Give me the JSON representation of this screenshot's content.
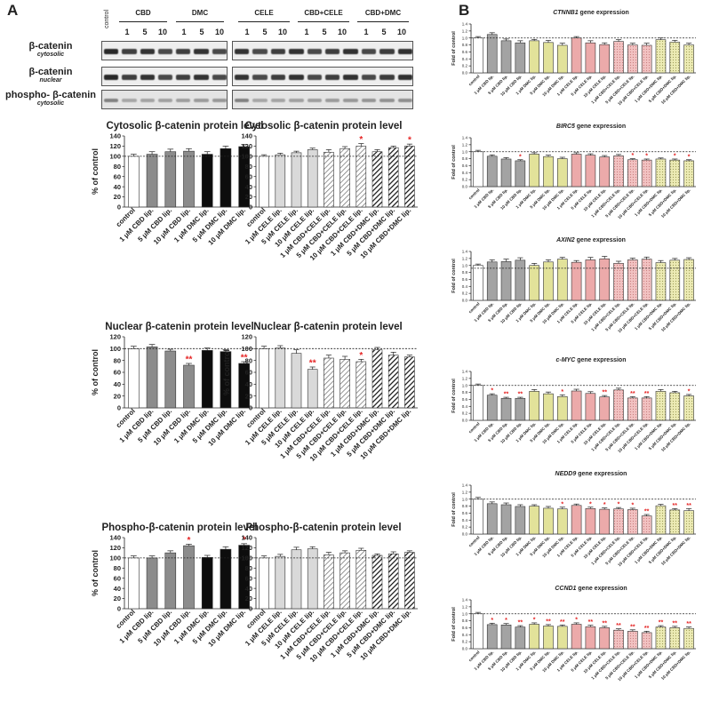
{
  "panels": {
    "a": "A",
    "b": "B"
  },
  "blot": {
    "left_groups": [
      {
        "label": "control",
        "rotated": true
      },
      {
        "label": "CBD",
        "doses": [
          "1",
          "5",
          "10"
        ]
      },
      {
        "label": "DMC",
        "doses": [
          "1",
          "5",
          "10"
        ]
      }
    ],
    "right_groups": [
      {
        "label": "CELE",
        "doses": [
          "1",
          "5",
          "10"
        ]
      },
      {
        "label": "CBD+CELE",
        "doses": [
          "1",
          "5",
          "10"
        ]
      },
      {
        "label": "CBD+DMC",
        "doses": [
          "1",
          "5",
          "10"
        ]
      }
    ],
    "rows": [
      {
        "main": "β-catenin",
        "sub": "cytosolic"
      },
      {
        "main": "β-catenin",
        "sub": "nuclear"
      },
      {
        "main": "phospho- β-catenin",
        "sub": "cytosolic"
      }
    ]
  },
  "chart_data": [
    {
      "type": "bar",
      "title": "Cytosolic β-catenin protein level",
      "ylabel": "% of control",
      "ylim": [
        0,
        140
      ],
      "yticks": [
        0,
        20,
        40,
        60,
        80,
        100,
        120,
        140
      ],
      "reference_line": 100,
      "categories": [
        "control",
        "1 μM CBD lip.",
        "5 μM CBD lip.",
        "10 μM CBD lip.",
        "1 μM DMC lip.",
        "5 μM DMC lip.",
        "10 μM DMC lip."
      ],
      "values": [
        100,
        104,
        109,
        110,
        104,
        115,
        119
      ],
      "errors": [
        4,
        5,
        5,
        5,
        5,
        5,
        4
      ],
      "significance": [
        "",
        "",
        "",
        "",
        "",
        "",
        ""
      ],
      "fills": [
        "#ffffff",
        "#8c8c8c",
        "#8c8c8c",
        "#8c8c8c",
        "#0d0d0d",
        "#0d0d0d",
        "#0d0d0d"
      ]
    },
    {
      "type": "bar",
      "title": "Cytosolic β-catenin protein level",
      "ylabel": "",
      "ylim": [
        0,
        140
      ],
      "yticks": [
        0,
        20,
        40,
        60,
        80,
        100,
        120,
        140
      ],
      "reference_line": 100,
      "categories": [
        "control",
        "1 μM CELE lip.",
        "5 μM CELE lip.",
        "10 μM CELE lip.",
        "1 μM CBD+CELE lip.",
        "5 μM CBD+CELE lip.",
        "10 μM CBD+CELE lip.",
        "1 μM CBD+DMC lip.",
        "5 μM CBD+DMC lip.",
        "10 μM CBD+DMC lip."
      ],
      "values": [
        100,
        103,
        107,
        113,
        108,
        115,
        120,
        109,
        117,
        120
      ],
      "errors": [
        3,
        3,
        3,
        3,
        5,
        4,
        5,
        4,
        3,
        4
      ],
      "significance": [
        "",
        "",
        "",
        "",
        "",
        "",
        "*",
        "",
        "",
        "*"
      ],
      "fills": [
        "#ffffff",
        "#d9d9d9",
        "#d9d9d9",
        "#d9d9d9",
        "hatch-light",
        "hatch-light",
        "hatch-light",
        "hatch-dark",
        "hatch-dark",
        "hatch-dark"
      ]
    },
    {
      "type": "bar",
      "title": "Nuclear β-catenin protein level",
      "ylabel": "% of control",
      "ylim": [
        0,
        120
      ],
      "yticks": [
        0,
        20,
        40,
        60,
        80,
        100,
        120
      ],
      "reference_line": 100,
      "categories": [
        "control",
        "1 μM CBD lip.",
        "5 μM CBD lip.",
        "10 μM CBD lip.",
        "1 μM DMC lip.",
        "5 μM DMC lip.",
        "10 μM DMC lip."
      ],
      "values": [
        100,
        103,
        96,
        72,
        97,
        95,
        75
      ],
      "errors": [
        4,
        4,
        3,
        3,
        4,
        3,
        3
      ],
      "significance": [
        "",
        "",
        "",
        "**",
        "",
        "",
        "**"
      ],
      "fills": [
        "#ffffff",
        "#8c8c8c",
        "#8c8c8c",
        "#8c8c8c",
        "#0d0d0d",
        "#0d0d0d",
        "#0d0d0d"
      ]
    },
    {
      "type": "bar",
      "title": "Nuclear β-catenin protein level",
      "ylabel": "% of control",
      "ylim": [
        0,
        120
      ],
      "yticks": [
        0,
        20,
        40,
        60,
        80,
        100,
        120
      ],
      "reference_line": 100,
      "categories": [
        "control",
        "1 μM CELE lip.",
        "5 μM CELE lip.",
        "10 μM CELE lip.",
        "1 μM CBD+CELE lip.",
        "5 μM CBD+CELE lip.",
        "10 μM CBD+CELE lip.",
        "1 μM CBD+DMC lip.",
        "5 μM CBD+DMC lip.",
        "10 μM CBD+DMC lip."
      ],
      "values": [
        100,
        101,
        92,
        65,
        84,
        82,
        78,
        98,
        89,
        86
      ],
      "errors": [
        4,
        4,
        6,
        4,
        5,
        5,
        4,
        4,
        5,
        3
      ],
      "significance": [
        "",
        "",
        "",
        "**",
        "",
        "",
        "*",
        "",
        "",
        ""
      ],
      "fills": [
        "#ffffff",
        "#d9d9d9",
        "#d9d9d9",
        "#d9d9d9",
        "hatch-light",
        "hatch-light",
        "hatch-light",
        "hatch-dark",
        "hatch-dark",
        "hatch-dark"
      ]
    },
    {
      "type": "bar",
      "title": "Phospho-β-catenin protein level",
      "ylabel": "% of control",
      "ylim": [
        0,
        140
      ],
      "yticks": [
        0,
        20,
        40,
        60,
        80,
        100,
        120,
        140
      ],
      "reference_line": 100,
      "categories": [
        "control",
        "1 μM CBD lip.",
        "5 μM CBD lip.",
        "10 μM CBD lip.",
        "1 μM DMC lip.",
        "5 μM DMC lip.",
        "10 μM DMC lip."
      ],
      "values": [
        100,
        100,
        110,
        124,
        101,
        117,
        125
      ],
      "errors": [
        4,
        4,
        4,
        3,
        4,
        5,
        3
      ],
      "significance": [
        "",
        "",
        "",
        "*",
        "",
        "",
        "*"
      ],
      "fills": [
        "#ffffff",
        "#8c8c8c",
        "#8c8c8c",
        "#8c8c8c",
        "#0d0d0d",
        "#0d0d0d",
        "#0d0d0d"
      ]
    },
    {
      "type": "bar",
      "title": "Phospho-β-catenin protein level",
      "ylabel": "",
      "ylim": [
        0,
        140
      ],
      "yticks": [
        0,
        20,
        40,
        60,
        80,
        100,
        120,
        140
      ],
      "reference_line": 100,
      "categories": [
        "control",
        "1 μM CELE lip.",
        "5 μM CELE lip.",
        "10 μM CELE lip.",
        "1 μM CBD+CELE lip.",
        "5 μM CBD+CELE lip.",
        "10 μM CBD+CELE lip.",
        "1 μM CBD+DMC lip.",
        "5 μM CBD+DMC lip.",
        "10 μM CBD+DMC lip."
      ],
      "values": [
        100,
        103,
        116,
        118,
        106,
        110,
        115,
        105,
        108,
        111
      ],
      "errors": [
        4,
        4,
        5,
        4,
        5,
        4,
        4,
        3,
        4,
        3
      ],
      "significance": [
        "",
        "",
        "",
        "",
        "",
        "",
        "",
        "",
        "",
        ""
      ],
      "fills": [
        "#ffffff",
        "#d9d9d9",
        "#d9d9d9",
        "#d9d9d9",
        "hatch-light",
        "hatch-light",
        "hatch-light",
        "hatch-dark",
        "hatch-dark",
        "hatch-dark"
      ]
    },
    {
      "type": "bar",
      "title_gene": "CTNNB1",
      "title_suffix": " gene expression",
      "ylabel": "Fold of control",
      "ylim": [
        0,
        1.4
      ],
      "yticks": [
        0,
        0.2,
        0.4,
        0.6,
        0.8,
        1.0,
        1.2,
        1.4
      ],
      "reference_line": 1.0,
      "categories": [
        "control",
        "1 μM CBD lip.",
        "5 μM CBD lip.",
        "10 μM CBD lip.",
        "1 μM DMC lip.",
        "5 μM DMC lip.",
        "10 μM DMC lip.",
        "1 μM CELE lip.",
        "5 μM CELE lip.",
        "10 μM CELE lip.",
        "1 μM CBD+CELE lip.",
        "5 μM CBD+CELE lip.",
        "10 μM CBD+CELE lip.",
        "1 μM CBD+DMC lip.",
        "5 μM CBD+DMC lip.",
        "10 μM CBD+DMC lip."
      ],
      "values": [
        1.0,
        1.1,
        0.92,
        0.86,
        0.92,
        0.87,
        0.79,
        1.0,
        0.86,
        0.81,
        0.9,
        0.8,
        0.79,
        0.95,
        0.88,
        0.8
      ],
      "errors": [
        0.04,
        0.05,
        0.05,
        0.06,
        0.04,
        0.06,
        0.06,
        0.04,
        0.06,
        0.05,
        0.05,
        0.05,
        0.06,
        0.05,
        0.05,
        0.05
      ],
      "significance": [
        "",
        "",
        "",
        "",
        "",
        "",
        "",
        "",
        "",
        "",
        "",
        "",
        "",
        "",
        "",
        ""
      ],
      "fills": [
        "#ffffff",
        "#a3a3a3",
        "#a3a3a3",
        "#a3a3a3",
        "#e2e29a",
        "#e2e29a",
        "#e2e29a",
        "#ecaaaa",
        "#ecaaaa",
        "#ecaaaa",
        "rose-dots",
        "rose-dots",
        "rose-dots",
        "yellow-dots",
        "yellow-dots",
        "yellow-dots"
      ]
    },
    {
      "type": "bar",
      "title_gene": "BIRC5",
      "title_suffix": " gene expression",
      "ylabel": "Fold of control",
      "ylim": [
        0,
        1.4
      ],
      "yticks": [
        0,
        0.2,
        0.4,
        0.6,
        0.8,
        1.0,
        1.2,
        1.4
      ],
      "reference_line": 1.0,
      "categories": [
        "control",
        "1 μM CBD lip.",
        "5 μM CBD lip.",
        "10 μM CBD lip.",
        "1 μM DMC lip.",
        "5 μM DMC lip.",
        "10 μM DMC lip.",
        "1 μM CELE lip.",
        "5 μM CELE lip.",
        "10 μM CELE lip.",
        "1 μM CBD+CELE lip.",
        "5 μM CBD+CELE lip.",
        "10 μM CBD+CELE lip.",
        "1 μM CBD+DMC lip.",
        "5 μM CBD+DMC lip.",
        "10 μM CBD+DMC lip."
      ],
      "values": [
        1.0,
        0.87,
        0.79,
        0.74,
        0.93,
        0.86,
        0.8,
        0.93,
        0.9,
        0.85,
        0.88,
        0.77,
        0.76,
        0.79,
        0.76,
        0.74
      ],
      "errors": [
        0.04,
        0.04,
        0.04,
        0.03,
        0.04,
        0.04,
        0.04,
        0.04,
        0.04,
        0.04,
        0.04,
        0.03,
        0.03,
        0.03,
        0.03,
        0.03
      ],
      "significance": [
        "",
        "",
        "",
        "*",
        "",
        "",
        "",
        "",
        "",
        "",
        "",
        "*",
        "*",
        "",
        "*",
        "*"
      ],
      "fills": [
        "#ffffff",
        "#a3a3a3",
        "#a3a3a3",
        "#a3a3a3",
        "#e2e29a",
        "#e2e29a",
        "#e2e29a",
        "#ecaaaa",
        "#ecaaaa",
        "#ecaaaa",
        "rose-dots",
        "rose-dots",
        "rose-dots",
        "yellow-dots",
        "yellow-dots",
        "yellow-dots"
      ]
    },
    {
      "type": "bar",
      "title_gene": "AXIN2",
      "title_suffix": " gene expression",
      "ylabel": "Fold of control",
      "ylim": [
        0,
        1.4
      ],
      "yticks": [
        0,
        0.2,
        0.4,
        0.6,
        0.8,
        1.0,
        1.2,
        1.4
      ],
      "reference_line": 0.92,
      "categories": [
        "control",
        "1 μM CBD lip.",
        "5 μM CBD lip.",
        "10 μM CBD lip.",
        "1 μM DMC lip.",
        "5 μM DMC lip.",
        "10 μM DMC lip.",
        "1 μM CELE lip.",
        "5 μM CELE lip.",
        "10 μM CELE lip.",
        "1 μM CBD+CELE lip.",
        "5 μM CBD+CELE lip.",
        "10 μM CBD+CELE lip.",
        "1 μM CBD+DMC lip.",
        "5 μM CBD+DMC lip.",
        "10 μM CBD+DMC lip."
      ],
      "values": [
        1.0,
        1.1,
        1.11,
        1.15,
        1.0,
        1.1,
        1.18,
        1.09,
        1.16,
        1.19,
        1.06,
        1.16,
        1.18,
        1.08,
        1.15,
        1.17
      ],
      "errors": [
        0.04,
        0.06,
        0.07,
        0.07,
        0.06,
        0.06,
        0.05,
        0.05,
        0.07,
        0.07,
        0.06,
        0.05,
        0.06,
        0.06,
        0.05,
        0.05
      ],
      "significance": [
        "",
        "",
        "",
        "",
        "",
        "",
        "",
        "",
        "",
        "",
        "",
        "",
        "",
        "",
        "",
        ""
      ],
      "fills": [
        "#ffffff",
        "#a3a3a3",
        "#a3a3a3",
        "#a3a3a3",
        "#e2e29a",
        "#e2e29a",
        "#e2e29a",
        "#ecaaaa",
        "#ecaaaa",
        "#ecaaaa",
        "rose-dots",
        "rose-dots",
        "rose-dots",
        "yellow-dots",
        "yellow-dots",
        "yellow-dots"
      ]
    },
    {
      "type": "bar",
      "title_gene": "c-MYC",
      "title_suffix": " gene expression",
      "ylabel": "Fold of control",
      "ylim": [
        0,
        1.4
      ],
      "yticks": [
        0,
        0.2,
        0.4,
        0.6,
        0.8,
        1.0,
        1.2,
        1.4
      ],
      "reference_line": 1.0,
      "categories": [
        "control",
        "1 μM CBD lip.",
        "5 μM CBD lip.",
        "10 μM CBD lip.",
        "1 μM DMC lip.",
        "5 μM DMC lip.",
        "10 μM DMC lip.",
        "1 μM CELE lip.",
        "5 μM CELE lip.",
        "10 μM CELE lip.",
        "1 μM CBD+CELE lip.",
        "5 μM CBD+CELE lip.",
        "10 μM CBD+CELE lip.",
        "1 μM CBD+DMC lip.",
        "5 μM CBD+DMC lip.",
        "10 μM CBD+DMC lip."
      ],
      "values": [
        1.0,
        0.72,
        0.63,
        0.63,
        0.83,
        0.76,
        0.68,
        0.84,
        0.77,
        0.67,
        0.87,
        0.64,
        0.64,
        0.83,
        0.79,
        0.7
      ],
      "errors": [
        0.04,
        0.04,
        0.03,
        0.03,
        0.05,
        0.05,
        0.05,
        0.05,
        0.05,
        0.04,
        0.05,
        0.04,
        0.04,
        0.05,
        0.04,
        0.04
      ],
      "significance": [
        "",
        "*",
        "**",
        "**",
        "",
        "",
        "*",
        "",
        "",
        "**",
        "",
        "**",
        "**",
        "",
        "",
        "*"
      ],
      "fills": [
        "#ffffff",
        "#a3a3a3",
        "#a3a3a3",
        "#a3a3a3",
        "#e2e29a",
        "#e2e29a",
        "#e2e29a",
        "#ecaaaa",
        "#ecaaaa",
        "#ecaaaa",
        "rose-dots",
        "rose-dots",
        "rose-dots",
        "yellow-dots",
        "yellow-dots",
        "yellow-dots"
      ]
    },
    {
      "type": "bar",
      "title_gene": "NEDD9",
      "title_suffix": " gene expression",
      "ylabel": "Fold of control",
      "ylim": [
        0,
        1.4
      ],
      "yticks": [
        0,
        0.2,
        0.4,
        0.6,
        0.8,
        1.0,
        1.2,
        1.4
      ],
      "reference_line": 1.0,
      "categories": [
        "control",
        "1 μM CBD lip.",
        "5 μM CBD lip.",
        "10 μM CBD lip.",
        "1 μM DMC lip.",
        "5 μM DMC lip.",
        "10 μM DMC lip.",
        "1 μM CELE lip.",
        "5 μM CELE lip.",
        "10 μM CELE lip.",
        "1 μM CBD+CELE lip.",
        "5 μM CBD+CELE lip.",
        "10 μM CBD+CELE lip.",
        "1 μM CBD+DMC lip.",
        "5 μM CBD+DMC lip.",
        "10 μM CBD+DMC lip."
      ],
      "values": [
        1.0,
        0.87,
        0.84,
        0.79,
        0.8,
        0.74,
        0.72,
        0.82,
        0.73,
        0.71,
        0.72,
        0.7,
        0.52,
        0.81,
        0.69,
        0.67
      ],
      "errors": [
        0.05,
        0.05,
        0.05,
        0.05,
        0.04,
        0.05,
        0.05,
        0.04,
        0.04,
        0.04,
        0.04,
        0.04,
        0.04,
        0.04,
        0.04,
        0.06
      ],
      "significance": [
        "",
        "",
        "",
        "",
        "",
        "",
        "*",
        "",
        "*",
        "*",
        "*",
        "*",
        "**",
        "",
        "**",
        "**"
      ],
      "fills": [
        "#ffffff",
        "#a3a3a3",
        "#a3a3a3",
        "#a3a3a3",
        "#e2e29a",
        "#e2e29a",
        "#e2e29a",
        "#ecaaaa",
        "#ecaaaa",
        "#ecaaaa",
        "rose-dots",
        "rose-dots",
        "rose-dots",
        "yellow-dots",
        "yellow-dots",
        "yellow-dots"
      ]
    },
    {
      "type": "bar",
      "title_gene": "CCND1",
      "title_suffix": " gene expression",
      "ylabel": "Fold of control",
      "ylim": [
        0,
        1.4
      ],
      "yticks": [
        0,
        0.2,
        0.4,
        0.6,
        0.8,
        1.0,
        1.2,
        1.4
      ],
      "reference_line": 1.0,
      "categories": [
        "control",
        "1 μM CBD lip.",
        "5 μM CBD lip.",
        "10 μM CBD lip.",
        "1 μM DMC lip.",
        "5 μM DMC lip.",
        "10 μM DMC lip.",
        "1 μM CELE lip.",
        "5 μM CELE lip.",
        "10 μM CELE lip.",
        "1 μM CBD+CELE lip.",
        "5 μM CBD+CELE lip.",
        "10 μM CBD+CELE lip.",
        "1 μM CBD+DMC lip.",
        "5 μM CBD+DMC lip.",
        "10 μM CBD+DMC lip."
      ],
      "values": [
        1.0,
        0.69,
        0.68,
        0.62,
        0.7,
        0.65,
        0.64,
        0.7,
        0.63,
        0.6,
        0.53,
        0.5,
        0.46,
        0.62,
        0.6,
        0.58
      ],
      "errors": [
        0.04,
        0.04,
        0.04,
        0.04,
        0.04,
        0.04,
        0.04,
        0.04,
        0.04,
        0.04,
        0.04,
        0.04,
        0.04,
        0.04,
        0.04,
        0.04
      ],
      "significance": [
        "",
        "*",
        "*",
        "**",
        "*",
        "**",
        "**",
        "*",
        "**",
        "**",
        "**",
        "**",
        "**",
        "**",
        "**",
        "**"
      ],
      "fills": [
        "#ffffff",
        "#a3a3a3",
        "#a3a3a3",
        "#a3a3a3",
        "#e2e29a",
        "#e2e29a",
        "#e2e29a",
        "#ecaaaa",
        "#ecaaaa",
        "#ecaaaa",
        "rose-dots",
        "rose-dots",
        "rose-dots",
        "yellow-dots",
        "yellow-dots",
        "yellow-dots"
      ]
    }
  ]
}
